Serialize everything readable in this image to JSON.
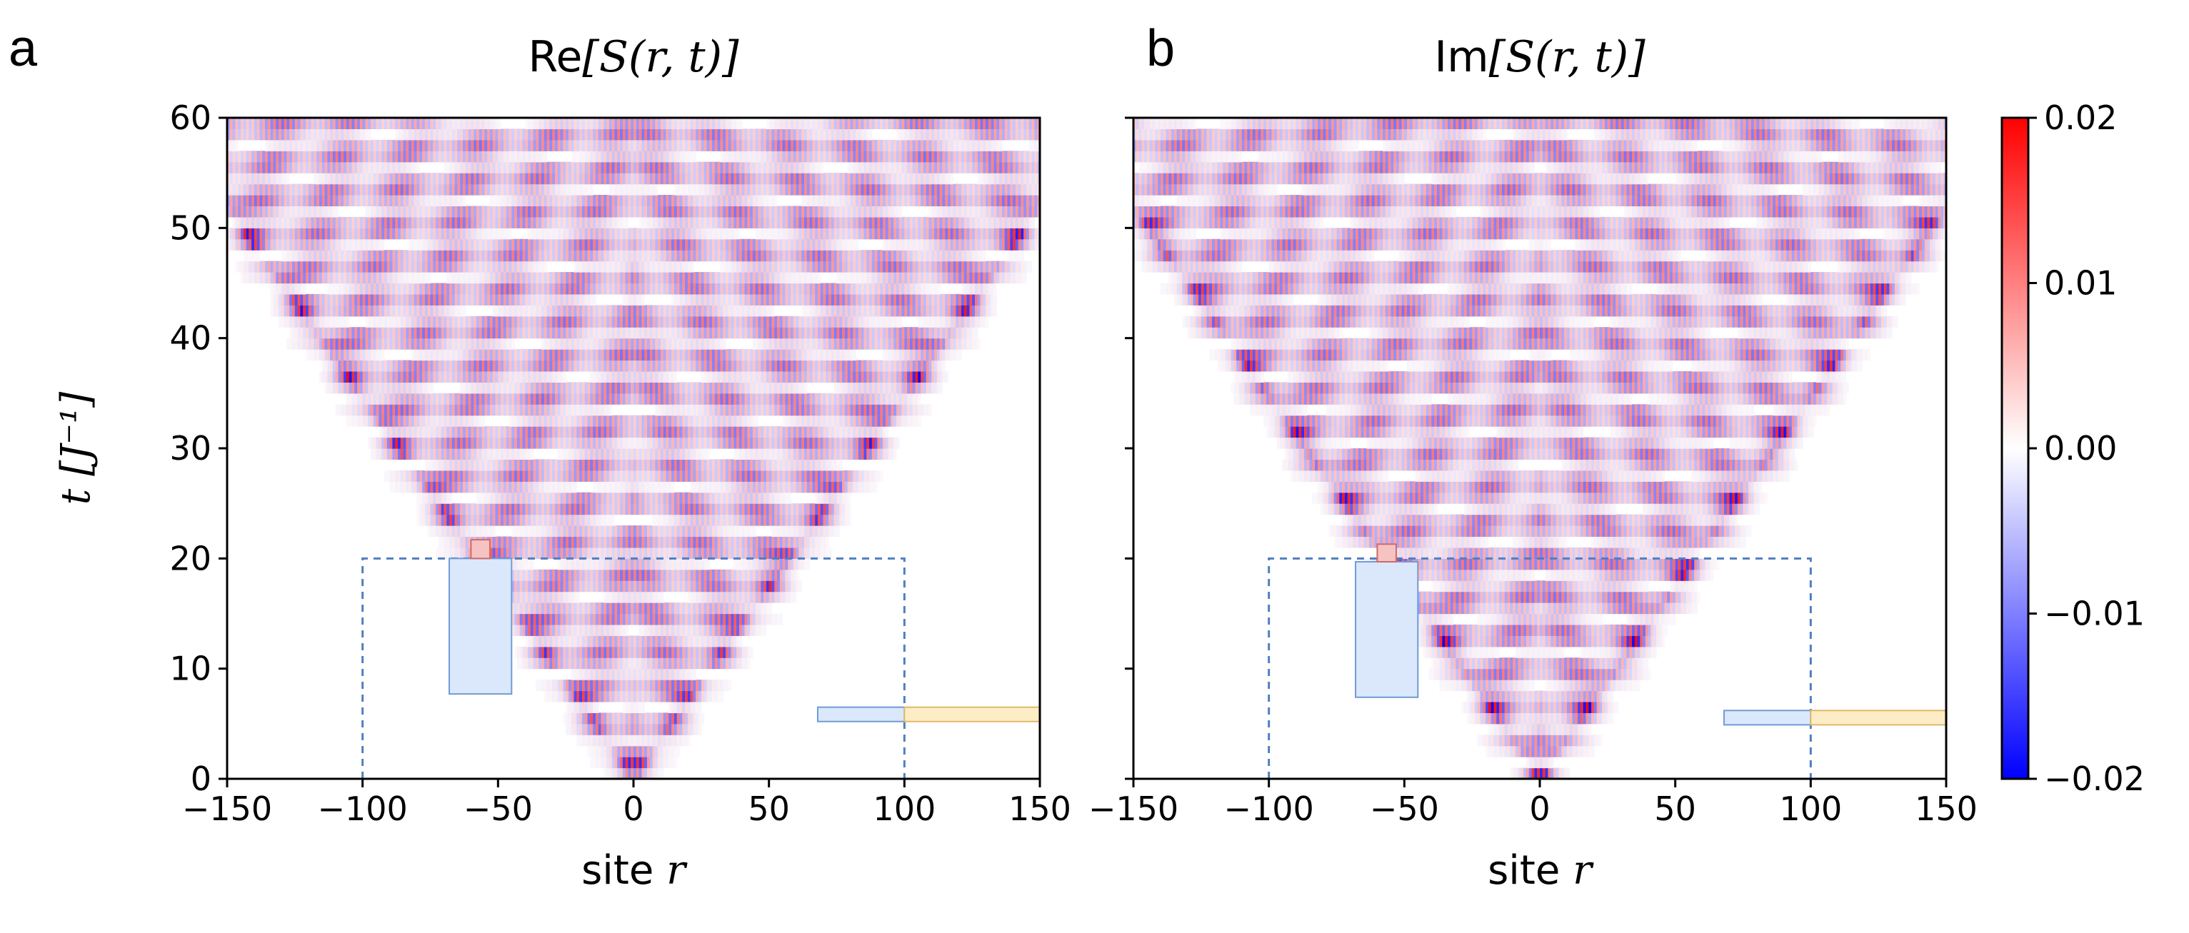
{
  "figure": {
    "colors": {
      "positive": "#ff0000",
      "zero": "#ffffff",
      "negative": "#0000ff",
      "dashed_box": "#4f7fc0",
      "blue_block": "#dbe8fb",
      "pink_block": "#f6c3c3",
      "yellow_block": "#fdedc6"
    }
  },
  "chart_data": [
    {
      "type": "heatmap",
      "panel_label": "a",
      "title_prefix": "Re",
      "title_body": "[S(r, t)]",
      "xlabel_text": "site ",
      "xlabel_var": "r",
      "ylabel_var": "t",
      "ylabel_unit": " [J⁻¹]",
      "x_ticks": [
        "−150",
        "−100",
        "−50",
        "0",
        "50",
        "100",
        "150"
      ],
      "x_tick_values": [
        -150,
        -100,
        -50,
        0,
        50,
        100,
        150
      ],
      "y_ticks": [
        "0",
        "10",
        "20",
        "30",
        "40",
        "50",
        "60"
      ],
      "y_tick_values": [
        0,
        10,
        20,
        30,
        40,
        50,
        60
      ],
      "xlim": [
        -150,
        150
      ],
      "ylim": [
        0,
        60
      ],
      "lightcone_speed_sites_per_J_inv": 2.9,
      "dashed_box": {
        "x": [
          -100,
          100
        ],
        "y": [
          0,
          20
        ]
      },
      "overlays": [
        {
          "name": "blue-bar",
          "x": [
            -68,
            -45
          ],
          "y": [
            7.7,
            20
          ]
        },
        {
          "name": "pink-square",
          "x": [
            -60,
            -53
          ],
          "y": [
            20,
            21.7
          ]
        },
        {
          "name": "blue-strip",
          "x": [
            68,
            100
          ],
          "y": [
            5.2,
            6.5
          ]
        },
        {
          "name": "yellow-strip",
          "x": [
            100,
            150
          ],
          "y": [
            5.2,
            6.5
          ]
        }
      ]
    },
    {
      "type": "heatmap",
      "panel_label": "b",
      "title_prefix": "Im",
      "title_body": "[S(r, t)]",
      "xlabel_text": "site ",
      "xlabel_var": "r",
      "x_ticks": [
        "−150",
        "−100",
        "−50",
        "0",
        "50",
        "100",
        "150"
      ],
      "x_tick_values": [
        -150,
        -100,
        -50,
        0,
        50,
        100,
        150
      ],
      "y_tick_values": [
        0,
        10,
        20,
        30,
        40,
        50,
        60
      ],
      "xlim": [
        -150,
        150
      ],
      "ylim": [
        0,
        60
      ],
      "lightcone_speed_sites_per_J_inv": 2.9,
      "dashed_box": {
        "x": [
          -100,
          100
        ],
        "y": [
          0,
          20
        ]
      },
      "overlays": [
        {
          "name": "blue-bar",
          "x": [
            -68,
            -45
          ],
          "y": [
            7.4,
            19.7
          ]
        },
        {
          "name": "pink-square",
          "x": [
            -60,
            -53
          ],
          "y": [
            19.7,
            21.3
          ]
        },
        {
          "name": "blue-strip",
          "x": [
            68,
            100
          ],
          "y": [
            4.9,
            6.2
          ]
        },
        {
          "name": "yellow-strip",
          "x": [
            100,
            150
          ],
          "y": [
            4.9,
            6.2
          ]
        }
      ]
    }
  ],
  "colorbar": {
    "ticks": [
      "0.02",
      "0.01",
      "0.00",
      "−0.01",
      "−0.02"
    ],
    "tick_values": [
      0.02,
      0.01,
      0.0,
      -0.01,
      -0.02
    ],
    "range": [
      -0.02,
      0.02
    ]
  }
}
